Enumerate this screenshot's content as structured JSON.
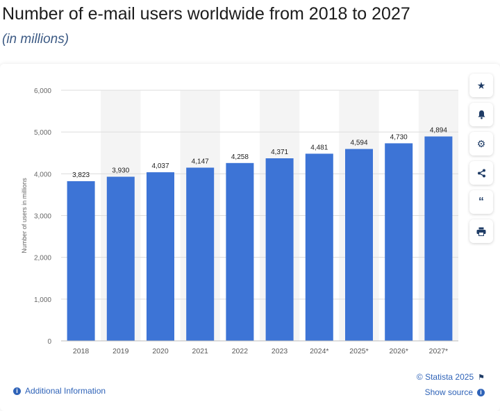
{
  "header": {
    "title": "Number of e-mail users worldwide from 2018 to 2027",
    "subtitle": "(in millions)"
  },
  "toolbar": {
    "icons": [
      "star-icon",
      "bell-icon",
      "gear-icon",
      "share-icon",
      "quote-icon",
      "print-icon"
    ]
  },
  "footer": {
    "additional_info": "Additional Information",
    "copyright": "© Statista 2025",
    "show_source": "Show source"
  },
  "colors": {
    "bar": "#3d74d6",
    "band": "#f4f4f4",
    "grid": "#dcdcdc",
    "accent": "#2f63b8"
  },
  "chart_data": {
    "type": "bar",
    "categories": [
      "2018",
      "2019",
      "2020",
      "2021",
      "2022",
      "2023",
      "2024*",
      "2025*",
      "2026*",
      "2027*"
    ],
    "values": [
      3823,
      3930,
      4037,
      4147,
      4258,
      4371,
      4481,
      4594,
      4730,
      4894
    ],
    "value_labels": [
      "3,823",
      "3,930",
      "4,037",
      "4,147",
      "4,258",
      "4,371",
      "4,481",
      "4,594",
      "4,730",
      "4,894"
    ],
    "ylabel": "Number of users in millions",
    "ylim": [
      0,
      6000
    ],
    "yticks": [
      0,
      1000,
      2000,
      3000,
      4000,
      5000,
      6000
    ],
    "ytick_labels": [
      "0",
      "1,000",
      "2,000",
      "3,000",
      "4,000",
      "5,000",
      "6,000"
    ],
    "grid": true
  }
}
